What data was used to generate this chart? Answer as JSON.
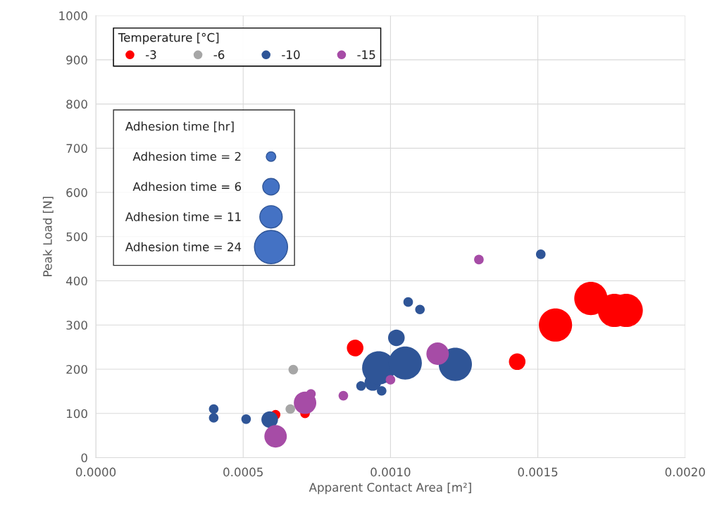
{
  "chart_data": {
    "type": "bubble",
    "xlabel": "Apparent Contact Area [m²]",
    "ylabel": "Peak Load [N]",
    "legend_title": "Temperature [°C]",
    "annotations": [
      "Adhesion time [hr]"
    ],
    "xlim": [
      0,
      0.002
    ],
    "ylim": [
      0,
      1000
    ],
    "xticks": [
      {
        "value": 0,
        "label": "0.0000"
      },
      {
        "value": 0.0005,
        "label": "0.0005"
      },
      {
        "value": 0.001,
        "label": "0.0010"
      },
      {
        "value": 0.0015,
        "label": "0.0015"
      },
      {
        "value": 0.002,
        "label": "0.0020"
      }
    ],
    "yticks": [
      0,
      100,
      200,
      300,
      400,
      500,
      600,
      700,
      800,
      900,
      1000
    ],
    "size_legend": [
      {
        "value": 2,
        "label": "Adhesion time = 2"
      },
      {
        "value": 6,
        "label": "Adhesion time = 6"
      },
      {
        "value": 11,
        "label": "Adhesion time = 11"
      },
      {
        "value": 24,
        "label": "Adhesion time = 24"
      }
    ],
    "grid": true,
    "legend": "top left",
    "series": [
      {
        "name": "-3",
        "color": "#ff0000",
        "x": [
          0.00088,
          0.00061,
          0.00071,
          0.00143,
          0.00156,
          0.00168,
          0.00176,
          0.0018
        ],
        "values": [
          248,
          97,
          100,
          217,
          300,
          360,
          333,
          333
        ],
        "sizes": [
          6,
          2,
          2,
          6,
          24,
          24,
          24,
          24
        ]
      },
      {
        "name": "-6",
        "color": "#a6a6a6",
        "x": [
          0.00067,
          0.00066
        ],
        "values": [
          199,
          110
        ],
        "sizes": [
          2,
          2
        ]
      },
      {
        "name": "-10",
        "color": "#2f5597",
        "x": [
          0.0004,
          0.0004,
          0.00051,
          0.00059,
          0.0009,
          0.00097,
          0.00094,
          0.00096,
          0.00105,
          0.00122,
          0.00102,
          0.00106,
          0.0011,
          0.00151
        ],
        "values": [
          110,
          90,
          87,
          86,
          162,
          151,
          170,
          203,
          214,
          211,
          271,
          352,
          335,
          460
        ],
        "sizes": [
          2,
          2,
          2,
          6,
          2,
          2,
          6,
          24,
          24,
          24,
          6,
          2,
          2,
          2
        ]
      },
      {
        "name": "-15",
        "color": "#a64ca6",
        "x": [
          0.00061,
          0.00071,
          0.00073,
          0.00084,
          0.001,
          0.00116,
          0.0013
        ],
        "values": [
          48,
          124,
          144,
          140,
          176,
          235,
          448
        ],
        "sizes": [
          11,
          11,
          2,
          2,
          2,
          11,
          2
        ]
      }
    ]
  }
}
